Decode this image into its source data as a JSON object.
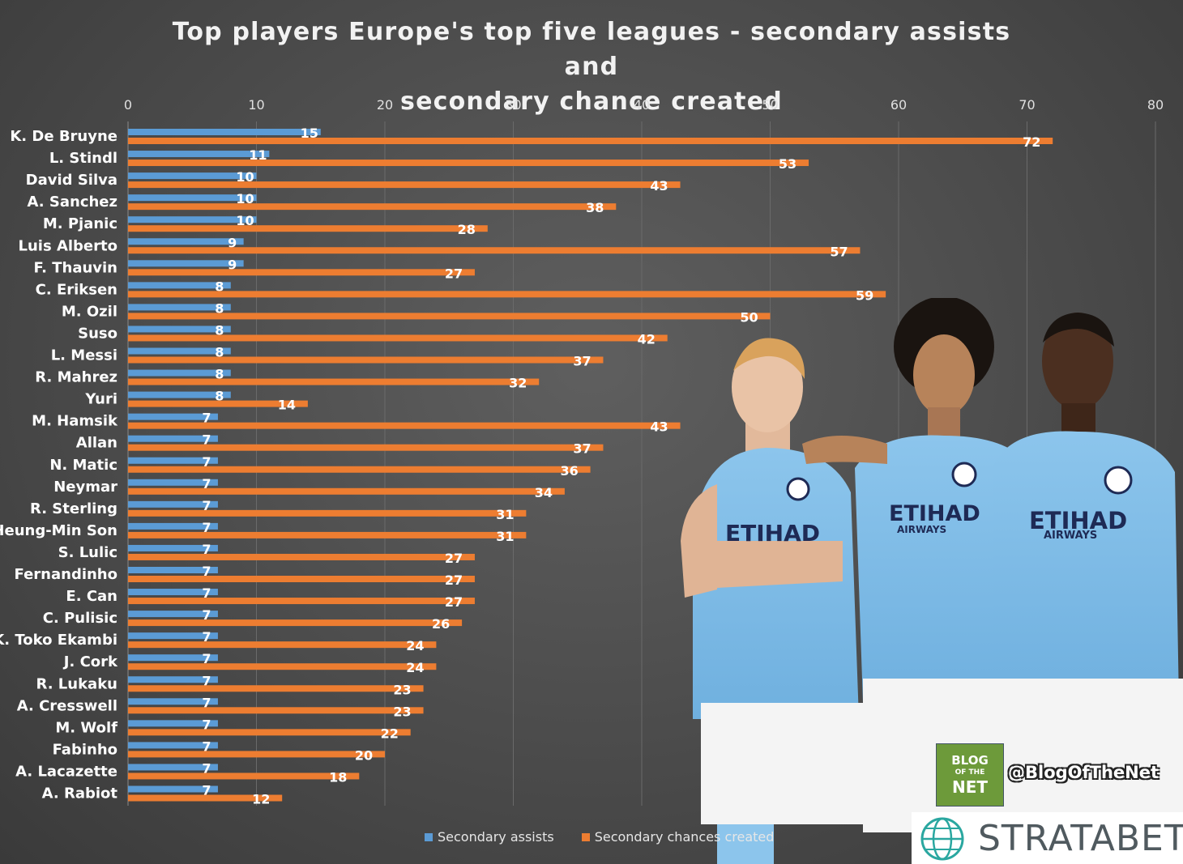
{
  "title_line1": "Top players Europe's top five leagues - secondary assists and",
  "title_line2": "secondary chance created",
  "chart_data": {
    "type": "bar",
    "orientation": "horizontal",
    "xlim": [
      0,
      80
    ],
    "x_ticks": [
      0,
      10,
      20,
      30,
      40,
      50,
      60,
      70,
      80
    ],
    "grid": true,
    "legend_position": "bottom",
    "categories": [
      "K. De Bruyne",
      "L. Stindl",
      "David Silva",
      "A. Sanchez",
      "M. Pjanic",
      "Luis Alberto",
      "F. Thauvin",
      "C. Eriksen",
      "M. Ozil",
      "Suso",
      "L. Messi",
      "R. Mahrez",
      "Yuri",
      "M. Hamsik",
      "Allan",
      "N. Matic",
      "Neymar",
      "R. Sterling",
      "Heung-Min Son",
      "S. Lulic",
      "Fernandinho",
      "E. Can",
      "C. Pulisic",
      "K. Toko Ekambi",
      "J. Cork",
      "R. Lukaku",
      "A. Cresswell",
      "M. Wolf",
      "Fabinho",
      "A. Lacazette",
      "A. Rabiot"
    ],
    "series": [
      {
        "name": "Secondary assists",
        "color": "#5b9bd5",
        "values": [
          15,
          11,
          10,
          10,
          10,
          9,
          9,
          8,
          8,
          8,
          8,
          8,
          8,
          7,
          7,
          7,
          7,
          7,
          7,
          7,
          7,
          7,
          7,
          7,
          7,
          7,
          7,
          7,
          7,
          7,
          7
        ]
      },
      {
        "name": "Secondary chances created",
        "color": "#ed7d31",
        "values": [
          72,
          53,
          43,
          38,
          28,
          57,
          27,
          59,
          50,
          42,
          37,
          32,
          14,
          43,
          37,
          36,
          34,
          31,
          31,
          27,
          27,
          27,
          26,
          24,
          24,
          23,
          23,
          22,
          20,
          18,
          12
        ]
      }
    ]
  },
  "branding": {
    "blog_logo_line1": "BLOG",
    "blog_logo_line2": "OF THE",
    "blog_logo_line3": "NET",
    "twitter_handle": "@BlogOfTheNet",
    "company_name": "STRATABET",
    "shirt_sponsor": "ETIHAD",
    "shirt_sponsor_sub": "AIRWAYS",
    "photo": "three Manchester City players in sky blue kits"
  }
}
